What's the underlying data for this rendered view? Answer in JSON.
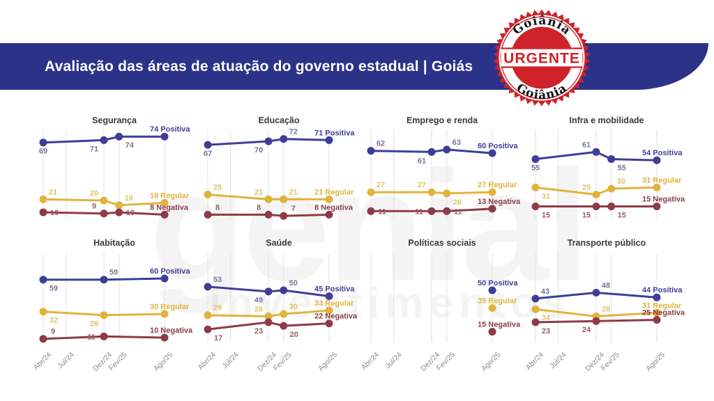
{
  "header": {
    "title": "Avaliação das áreas de atuação do governo estadual | Goiás",
    "bg_color": "#2b3388",
    "text_color": "#ffffff"
  },
  "stamp": {
    "top": "Goiânia",
    "middle": "URGENTE",
    "bottom": "Goiânia",
    "red": "#d0222a"
  },
  "watermark": {
    "word1": "genial",
    "word2": "investimentos"
  },
  "chart_data": {
    "type": "line",
    "x_ticks": [
      "Abr/24",
      "Jul/24",
      "Dez/24",
      "Fev/25",
      "Ago/25"
    ],
    "x_positions": [
      0,
      0.1875,
      0.5,
      0.625,
      1
    ],
    "ylim": [
      0,
      85
    ],
    "grid": "vertical-only",
    "legend": "inline-end-labels",
    "series_colors": {
      "Positiva": "#3e3e99",
      "Regular": "#e2b33c",
      "Negativa": "#8d3b47"
    },
    "mid_label_colors": {
      "Positiva": "#74749c",
      "Regular": "#e3c065",
      "Negativa": "#9c5a62"
    },
    "grid_color": "#e6e6e6",
    "tick_color": "#8a8a8a",
    "title_color": "#3b3b3b",
    "charts": [
      {
        "title": "Segurança",
        "series": [
          {
            "name": "Positiva",
            "points": [
              {
                "t": 0,
                "v": 69,
                "lp": "b"
              },
              {
                "t": 2,
                "v": 71,
                "lp": "bl"
              },
              {
                "t": 3,
                "v": 74,
                "lp": "br"
              },
              {
                "t": 4,
                "v": 74
              }
            ]
          },
          {
            "name": "Regular",
            "points": [
              {
                "t": 0,
                "v": 21,
                "lp": "ar"
              },
              {
                "t": 2,
                "v": 20,
                "lp": "al"
              },
              {
                "t": 3,
                "v": 16,
                "lp": "ar"
              },
              {
                "t": 4,
                "v": 18
              }
            ]
          },
          {
            "name": "Negativa",
            "points": [
              {
                "t": 0,
                "v": 10,
                "lp": "mr"
              },
              {
                "t": 2,
                "v": 9,
                "lp": "al"
              },
              {
                "t": 3,
                "v": 10,
                "lp": "mr"
              },
              {
                "t": 4,
                "v": 8
              }
            ]
          }
        ]
      },
      {
        "title": "Educação",
        "series": [
          {
            "name": "Positiva",
            "points": [
              {
                "t": 0,
                "v": 67,
                "lp": "b"
              },
              {
                "t": 2,
                "v": 70,
                "lp": "bl"
              },
              {
                "t": 3,
                "v": 72,
                "lp": "ar"
              },
              {
                "t": 4,
                "v": 71
              }
            ]
          },
          {
            "name": "Regular",
            "points": [
              {
                "t": 0,
                "v": 25,
                "lp": "ar"
              },
              {
                "t": 2,
                "v": 21,
                "lp": "al"
              },
              {
                "t": 3,
                "v": 21,
                "lp": "ar"
              },
              {
                "t": 4,
                "v": 21
              }
            ]
          },
          {
            "name": "Negativa",
            "points": [
              {
                "t": 0,
                "v": 8,
                "lp": "ar"
              },
              {
                "t": 2,
                "v": 8,
                "lp": "al"
              },
              {
                "t": 3,
                "v": 7,
                "lp": "ar"
              },
              {
                "t": 4,
                "v": 8
              }
            ]
          }
        ]
      },
      {
        "title": "Emprego e renda",
        "series": [
          {
            "name": "Positiva",
            "points": [
              {
                "t": 0,
                "v": 62,
                "lp": "ar"
              },
              {
                "t": 2,
                "v": 61,
                "lp": "bl"
              },
              {
                "t": 3,
                "v": 63,
                "lp": "ar"
              },
              {
                "t": 4,
                "v": 60
              }
            ]
          },
          {
            "name": "Regular",
            "points": [
              {
                "t": 0,
                "v": 27,
                "lp": "ar"
              },
              {
                "t": 2,
                "v": 27,
                "lp": "al"
              },
              {
                "t": 3,
                "v": 26,
                "lp": "br"
              },
              {
                "t": 4,
                "v": 27
              }
            ]
          },
          {
            "name": "Negativa",
            "points": [
              {
                "t": 0,
                "v": 11,
                "lp": "mr"
              },
              {
                "t": 2,
                "v": 11,
                "lp": "ml"
              },
              {
                "t": 3,
                "v": 11,
                "lp": "mr"
              },
              {
                "t": 4,
                "v": 13
              }
            ]
          }
        ]
      },
      {
        "title": "Infra e mobilidade",
        "series": [
          {
            "name": "Positiva",
            "points": [
              {
                "t": 0,
                "v": 55,
                "lp": "b"
              },
              {
                "t": 2,
                "v": 61,
                "lp": "al"
              },
              {
                "t": 3,
                "v": 55,
                "lp": "br"
              },
              {
                "t": 4,
                "v": 54
              }
            ]
          },
          {
            "name": "Regular",
            "points": [
              {
                "t": 0,
                "v": 31,
                "lp": "br"
              },
              {
                "t": 2,
                "v": 25,
                "lp": "al"
              },
              {
                "t": 3,
                "v": 30,
                "lp": "ar"
              },
              {
                "t": 4,
                "v": 31
              }
            ]
          },
          {
            "name": "Negativa",
            "points": [
              {
                "t": 0,
                "v": 15,
                "lp": "br"
              },
              {
                "t": 2,
                "v": 15,
                "lp": "bl"
              },
              {
                "t": 3,
                "v": 15,
                "lp": "br"
              },
              {
                "t": 4,
                "v": 15
              }
            ]
          }
        ]
      },
      {
        "title": "Habitação",
        "series": [
          {
            "name": "Positiva",
            "points": [
              {
                "t": 0,
                "v": 59,
                "lp": "br"
              },
              {
                "t": 2,
                "v": 59,
                "lp": "ar"
              },
              {
                "t": 4,
                "v": 60
              }
            ]
          },
          {
            "name": "Regular",
            "points": [
              {
                "t": 0,
                "v": 32,
                "lp": "br"
              },
              {
                "t": 2,
                "v": 29,
                "lp": "bl"
              },
              {
                "t": 4,
                "v": 30
              }
            ]
          },
          {
            "name": "Negativa",
            "points": [
              {
                "t": 0,
                "v": 9,
                "lp": "ar"
              },
              {
                "t": 2,
                "v": 11,
                "lp": "ml"
              },
              {
                "t": 4,
                "v": 10
              }
            ]
          }
        ]
      },
      {
        "title": "Saúde",
        "series": [
          {
            "name": "Positiva",
            "points": [
              {
                "t": 0,
                "v": 53,
                "lp": "ar"
              },
              {
                "t": 2,
                "v": 49,
                "lp": "bl"
              },
              {
                "t": 3,
                "v": 50,
                "lp": "ar"
              },
              {
                "t": 4,
                "v": 45
              }
            ]
          },
          {
            "name": "Regular",
            "points": [
              {
                "t": 0,
                "v": 29,
                "lp": "ar"
              },
              {
                "t": 2,
                "v": 28,
                "lp": "al"
              },
              {
                "t": 3,
                "v": 30,
                "lp": "ar"
              },
              {
                "t": 4,
                "v": 33
              }
            ]
          },
          {
            "name": "Negativa",
            "points": [
              {
                "t": 0,
                "v": 17,
                "lp": "br"
              },
              {
                "t": 2,
                "v": 23,
                "lp": "bl"
              },
              {
                "t": 3,
                "v": 20,
                "lp": "br"
              },
              {
                "t": 4,
                "v": 22
              }
            ]
          }
        ]
      },
      {
        "title": "Políticas sociais",
        "series": [
          {
            "name": "Positiva",
            "points": [
              {
                "t": 4,
                "v": 50
              }
            ]
          },
          {
            "name": "Regular",
            "points": [
              {
                "t": 4,
                "v": 35
              }
            ]
          },
          {
            "name": "Negativa",
            "points": [
              {
                "t": 4,
                "v": 15
              }
            ]
          }
        ]
      },
      {
        "title": "Transporte público",
        "series": [
          {
            "name": "Positiva",
            "points": [
              {
                "t": 0,
                "v": 43,
                "lp": "ar"
              },
              {
                "t": 2,
                "v": 48,
                "lp": "ar"
              },
              {
                "t": 4,
                "v": 44
              }
            ]
          },
          {
            "name": "Regular",
            "points": [
              {
                "t": 0,
                "v": 34,
                "lp": "br"
              },
              {
                "t": 2,
                "v": 28,
                "lp": "ar"
              },
              {
                "t": 4,
                "v": 31
              }
            ]
          },
          {
            "name": "Negativa",
            "points": [
              {
                "t": 0,
                "v": 23,
                "lp": "br"
              },
              {
                "t": 2,
                "v": 24,
                "lp": "bl"
              },
              {
                "t": 4,
                "v": 25
              }
            ]
          }
        ]
      }
    ]
  }
}
